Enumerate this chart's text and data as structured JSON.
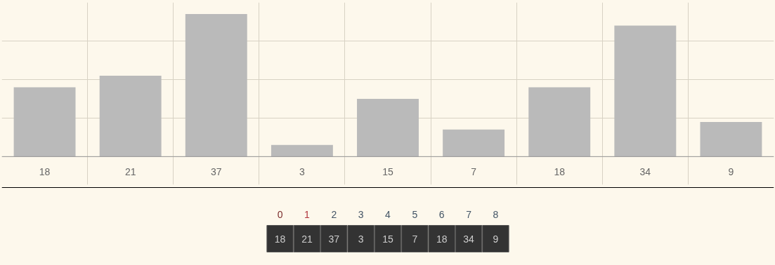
{
  "chart_data": {
    "type": "bar",
    "categories": [
      null,
      null,
      null,
      null,
      null,
      null,
      null,
      null,
      null
    ],
    "values": [
      18,
      21,
      37,
      3,
      15,
      7,
      18,
      34,
      9
    ],
    "value_labels": [
      "18",
      "21",
      "37",
      "3",
      "15",
      "7",
      "18",
      "34",
      "9"
    ],
    "color": "#bababa",
    "grid": true,
    "tick_labels": false,
    "annotations": [
      "0",
      "1",
      "2",
      "3",
      "4",
      "5",
      "6",
      "7",
      "8"
    ]
  }
}
